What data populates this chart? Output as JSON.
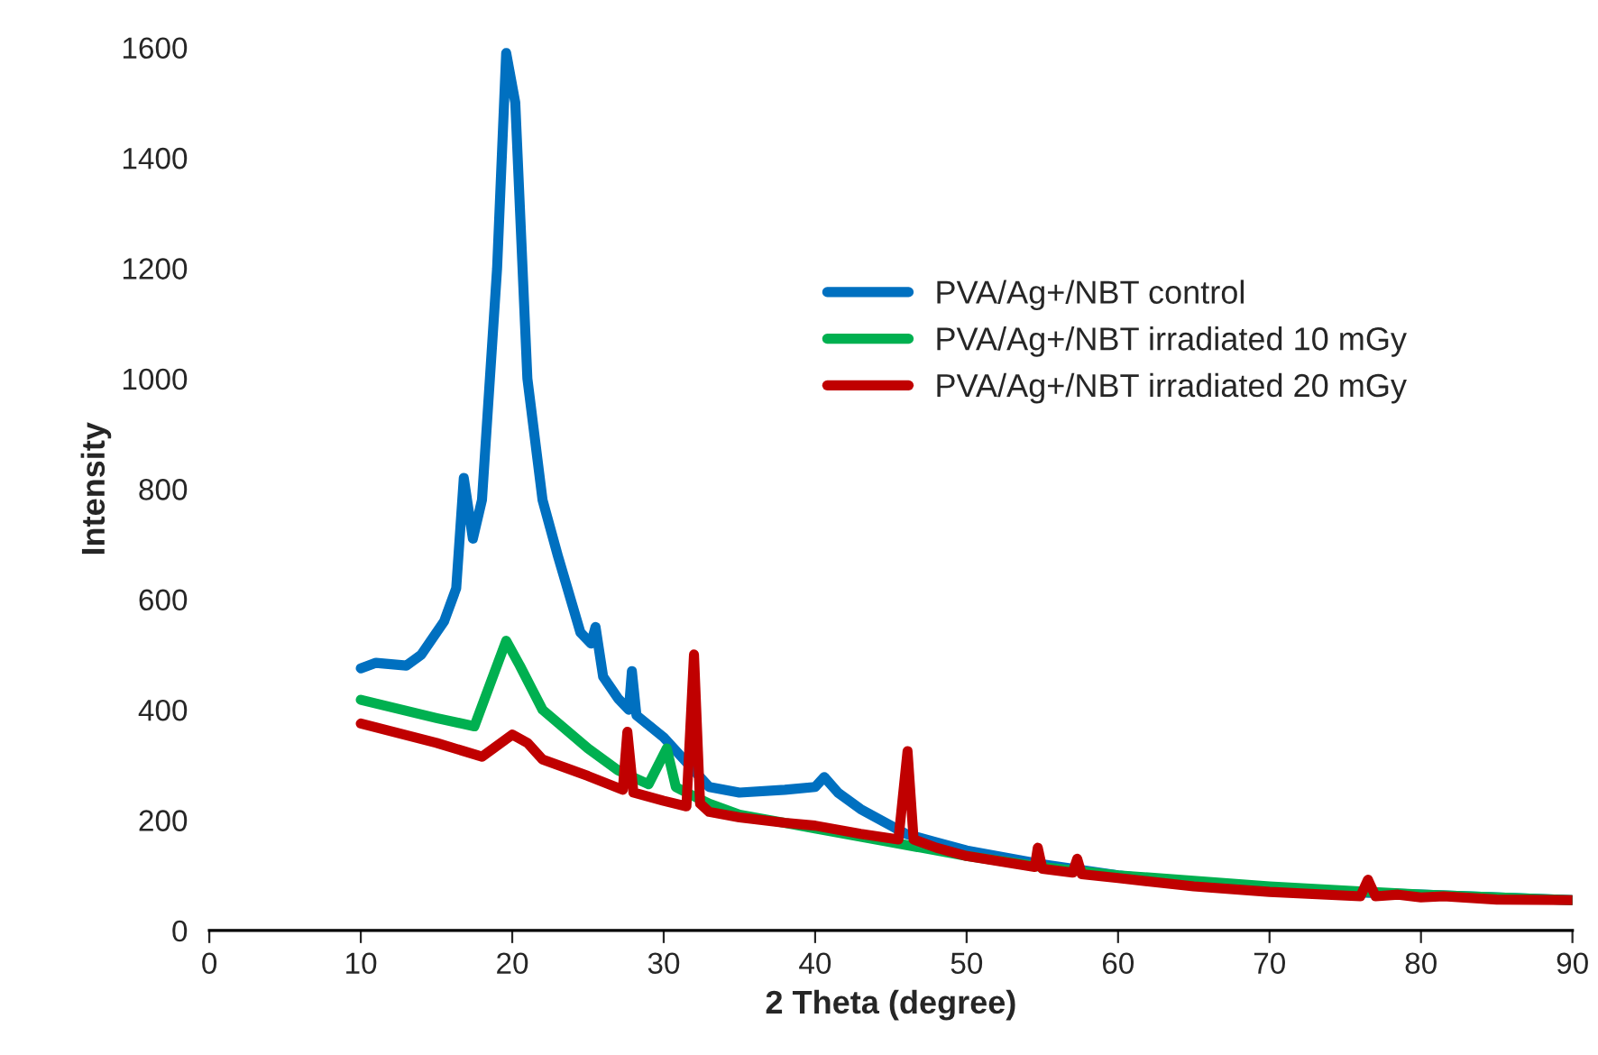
{
  "chart_data": {
    "type": "line",
    "xlabel": "2 Theta (degree)",
    "ylabel": "Intensity",
    "xlim": [
      0,
      90
    ],
    "ylim": [
      0,
      1600
    ],
    "xticks": [
      0,
      10,
      20,
      30,
      40,
      50,
      60,
      70,
      80,
      90
    ],
    "yticks": [
      0,
      200,
      400,
      600,
      800,
      1000,
      1200,
      1400,
      1600
    ],
    "grid": false,
    "legend": "top right",
    "marker": "none",
    "line_style": "solid",
    "series": [
      {
        "name": "PVA/Ag+/NBT control",
        "color": "#0070c0",
        "x": [
          10,
          11,
          13,
          14,
          15.5,
          16.3,
          16.8,
          17.4,
          18,
          19,
          19.6,
          20.2,
          21,
          22,
          23,
          24.5,
          25.2,
          25.5,
          26,
          27,
          27.7,
          27.9,
          28.2,
          30,
          32,
          33,
          35,
          38,
          40,
          40.6,
          41.5,
          43,
          45,
          46,
          48,
          50,
          55,
          60,
          65,
          70,
          80,
          90
        ],
        "values": [
          475,
          485,
          480,
          500,
          560,
          620,
          820,
          710,
          780,
          1200,
          1590,
          1500,
          1000,
          780,
          680,
          540,
          520,
          550,
          460,
          420,
          400,
          470,
          390,
          350,
          290,
          260,
          250,
          255,
          260,
          278,
          250,
          220,
          190,
          175,
          160,
          145,
          120,
          100,
          85,
          75,
          65,
          55
        ]
      },
      {
        "name": "PVA/Ag+/NBT irradiated 10 mGy",
        "color": "#00b050",
        "x": [
          10,
          15,
          17.5,
          19.6,
          20.5,
          22,
          25,
          27,
          29,
          30.2,
          30.8,
          31.5,
          33,
          35,
          40,
          45,
          47,
          50,
          55,
          60,
          70,
          80,
          90
        ],
        "values": [
          418,
          385,
          370,
          525,
          480,
          400,
          330,
          290,
          265,
          330,
          260,
          250,
          230,
          210,
          185,
          160,
          150,
          135,
          115,
          100,
          80,
          65,
          55
        ]
      },
      {
        "name": "PVA/Ag+/NBT irradiated 20 mGy",
        "color": "#c00000",
        "x": [
          10,
          15,
          18,
          20,
          21,
          22,
          25,
          27.3,
          27.6,
          28,
          30,
          31.5,
          32,
          32.4,
          33,
          35,
          38,
          40,
          43,
          45.5,
          46.1,
          46.5,
          48,
          50,
          54.5,
          54.7,
          55,
          57,
          57.3,
          57.6,
          60,
          65,
          70,
          76,
          76.5,
          77,
          78.5,
          80,
          81.5,
          85,
          90
        ],
        "values": [
          375,
          340,
          315,
          355,
          340,
          310,
          280,
          255,
          360,
          250,
          235,
          225,
          500,
          230,
          215,
          205,
          195,
          190,
          175,
          165,
          325,
          165,
          150,
          135,
          115,
          150,
          112,
          105,
          130,
          102,
          95,
          80,
          70,
          62,
          92,
          62,
          65,
          60,
          62,
          56,
          55
        ]
      }
    ]
  }
}
